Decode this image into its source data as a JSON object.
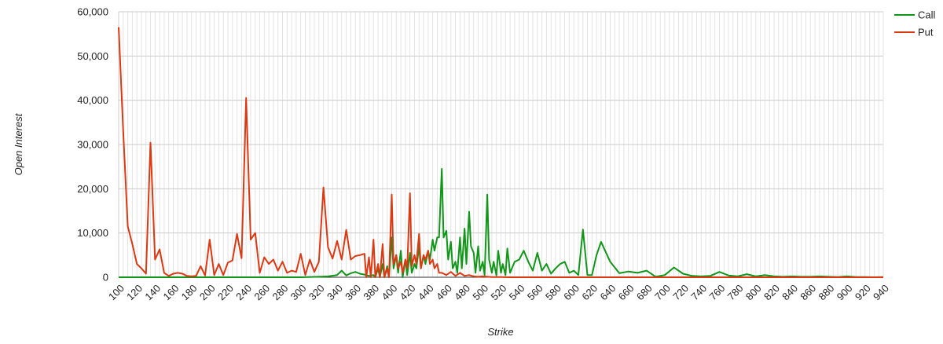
{
  "chart_data": {
    "type": "line",
    "xlabel": "Strike",
    "ylabel": "Open Interest",
    "xlim": [
      100,
      940
    ],
    "ylim": [
      0,
      60000
    ],
    "x_ticks": [
      100,
      120,
      140,
      160,
      180,
      200,
      220,
      240,
      260,
      280,
      300,
      320,
      340,
      360,
      380,
      400,
      420,
      440,
      460,
      480,
      500,
      520,
      540,
      560,
      580,
      600,
      620,
      640,
      660,
      680,
      700,
      720,
      740,
      760,
      780,
      800,
      820,
      840,
      860,
      880,
      900,
      920,
      940
    ],
    "y_ticks": [
      0,
      10000,
      20000,
      30000,
      40000,
      50000,
      60000
    ],
    "y_tick_labels": [
      "0",
      "10,000",
      "20,000",
      "30,000",
      "40,000",
      "50,000",
      "60,000"
    ],
    "grid": true,
    "legend_position": "top-right",
    "series": [
      {
        "name": "Call",
        "color": "#109618",
        "points": [
          [
            100,
            0
          ],
          [
            200,
            0
          ],
          [
            300,
            0
          ],
          [
            320,
            100
          ],
          [
            330,
            200
          ],
          [
            340,
            500
          ],
          [
            345,
            1500
          ],
          [
            350,
            400
          ],
          [
            355,
            900
          ],
          [
            360,
            1200
          ],
          [
            365,
            800
          ],
          [
            370,
            600
          ],
          [
            375,
            300
          ],
          [
            380,
            500
          ],
          [
            382,
            0
          ],
          [
            385,
            2000
          ],
          [
            387,
            0
          ],
          [
            390,
            3000
          ],
          [
            392,
            0
          ],
          [
            395,
            2500
          ],
          [
            397,
            0
          ],
          [
            400,
            9000
          ],
          [
            402,
            2000
          ],
          [
            405,
            5000
          ],
          [
            407,
            1000
          ],
          [
            410,
            6000
          ],
          [
            412,
            0
          ],
          [
            415,
            4000
          ],
          [
            417,
            500
          ],
          [
            420,
            5500
          ],
          [
            422,
            1000
          ],
          [
            425,
            3000
          ],
          [
            427,
            2000
          ],
          [
            430,
            7000
          ],
          [
            432,
            2000
          ],
          [
            435,
            5000
          ],
          [
            437,
            3000
          ],
          [
            440,
            6000
          ],
          [
            442,
            4000
          ],
          [
            445,
            8500
          ],
          [
            447,
            6000
          ],
          [
            450,
            9000
          ],
          [
            452,
            9000
          ],
          [
            455,
            24500
          ],
          [
            457,
            9000
          ],
          [
            460,
            10500
          ],
          [
            462,
            4000
          ],
          [
            465,
            8000
          ],
          [
            467,
            2000
          ],
          [
            470,
            3500
          ],
          [
            472,
            1000
          ],
          [
            475,
            9000
          ],
          [
            477,
            2000
          ],
          [
            480,
            11000
          ],
          [
            482,
            3000
          ],
          [
            485,
            14800
          ],
          [
            487,
            7000
          ],
          [
            490,
            5500
          ],
          [
            492,
            1000
          ],
          [
            495,
            7000
          ],
          [
            497,
            1500
          ],
          [
            500,
            3500
          ],
          [
            502,
            500
          ],
          [
            505,
            18700
          ],
          [
            507,
            4000
          ],
          [
            510,
            1000
          ],
          [
            512,
            3500
          ],
          [
            515,
            400
          ],
          [
            517,
            6000
          ],
          [
            520,
            1000
          ],
          [
            522,
            3000
          ],
          [
            525,
            500
          ],
          [
            527,
            6500
          ],
          [
            530,
            1000
          ],
          [
            535,
            3500
          ],
          [
            540,
            4000
          ],
          [
            545,
            6000
          ],
          [
            550,
            3500
          ],
          [
            555,
            1500
          ],
          [
            560,
            5500
          ],
          [
            565,
            1500
          ],
          [
            570,
            3000
          ],
          [
            575,
            800
          ],
          [
            580,
            2000
          ],
          [
            585,
            3000
          ],
          [
            590,
            3500
          ],
          [
            595,
            1000
          ],
          [
            600,
            1500
          ],
          [
            605,
            500
          ],
          [
            610,
            10800
          ],
          [
            615,
            500
          ],
          [
            620,
            500
          ],
          [
            625,
            5000
          ],
          [
            630,
            8000
          ],
          [
            640,
            3500
          ],
          [
            650,
            900
          ],
          [
            660,
            1300
          ],
          [
            670,
            1000
          ],
          [
            680,
            1500
          ],
          [
            690,
            100
          ],
          [
            700,
            500
          ],
          [
            710,
            2200
          ],
          [
            720,
            800
          ],
          [
            730,
            300
          ],
          [
            740,
            200
          ],
          [
            750,
            300
          ],
          [
            760,
            1200
          ],
          [
            770,
            400
          ],
          [
            780,
            200
          ],
          [
            790,
            700
          ],
          [
            800,
            200
          ],
          [
            810,
            500
          ],
          [
            820,
            200
          ],
          [
            830,
            100
          ],
          [
            840,
            200
          ],
          [
            850,
            100
          ],
          [
            860,
            100
          ],
          [
            870,
            200
          ],
          [
            880,
            100
          ],
          [
            890,
            50
          ],
          [
            900,
            200
          ],
          [
            910,
            50
          ],
          [
            920,
            50
          ],
          [
            930,
            0
          ],
          [
            940,
            50
          ]
        ]
      },
      {
        "name": "Put",
        "color": "#dc3912",
        "points": [
          [
            100,
            56500
          ],
          [
            105,
            33000
          ],
          [
            110,
            11500
          ],
          [
            115,
            7500
          ],
          [
            120,
            3000
          ],
          [
            125,
            2000
          ],
          [
            130,
            800
          ],
          [
            135,
            30400
          ],
          [
            140,
            4000
          ],
          [
            145,
            6300
          ],
          [
            150,
            1000
          ],
          [
            155,
            300
          ],
          [
            160,
            800
          ],
          [
            165,
            1000
          ],
          [
            170,
            800
          ],
          [
            175,
            300
          ],
          [
            180,
            200
          ],
          [
            185,
            300
          ],
          [
            190,
            2500
          ],
          [
            195,
            400
          ],
          [
            200,
            8500
          ],
          [
            205,
            500
          ],
          [
            210,
            3000
          ],
          [
            215,
            500
          ],
          [
            220,
            3300
          ],
          [
            225,
            3800
          ],
          [
            230,
            9800
          ],
          [
            235,
            4300
          ],
          [
            240,
            40500
          ],
          [
            245,
            8500
          ],
          [
            250,
            10000
          ],
          [
            255,
            1000
          ],
          [
            260,
            4500
          ],
          [
            265,
            3000
          ],
          [
            270,
            4000
          ],
          [
            275,
            1500
          ],
          [
            280,
            3500
          ],
          [
            285,
            1000
          ],
          [
            290,
            1500
          ],
          [
            295,
            1200
          ],
          [
            300,
            5300
          ],
          [
            305,
            500
          ],
          [
            310,
            4000
          ],
          [
            315,
            1200
          ],
          [
            320,
            3500
          ],
          [
            325,
            20300
          ],
          [
            330,
            6800
          ],
          [
            335,
            4200
          ],
          [
            340,
            8200
          ],
          [
            345,
            4000
          ],
          [
            350,
            10700
          ],
          [
            355,
            4000
          ],
          [
            360,
            4800
          ],
          [
            365,
            5000
          ],
          [
            370,
            5300
          ],
          [
            372,
            0
          ],
          [
            375,
            4500
          ],
          [
            377,
            0
          ],
          [
            380,
            8500
          ],
          [
            382,
            0
          ],
          [
            385,
            3000
          ],
          [
            387,
            0
          ],
          [
            390,
            7500
          ],
          [
            392,
            0
          ],
          [
            395,
            2000
          ],
          [
            397,
            0
          ],
          [
            400,
            18700
          ],
          [
            402,
            3000
          ],
          [
            405,
            5000
          ],
          [
            407,
            2000
          ],
          [
            410,
            3500
          ],
          [
            412,
            1000
          ],
          [
            415,
            4000
          ],
          [
            417,
            2000
          ],
          [
            420,
            19000
          ],
          [
            422,
            2500
          ],
          [
            425,
            5000
          ],
          [
            427,
            3000
          ],
          [
            430,
            9800
          ],
          [
            432,
            2000
          ],
          [
            435,
            5000
          ],
          [
            437,
            4000
          ],
          [
            440,
            6000
          ],
          [
            442,
            3000
          ],
          [
            445,
            4000
          ],
          [
            447,
            2000
          ],
          [
            450,
            3000
          ],
          [
            452,
            1000
          ],
          [
            455,
            1000
          ],
          [
            460,
            500
          ],
          [
            465,
            1200
          ],
          [
            470,
            300
          ],
          [
            475,
            1000
          ],
          [
            480,
            300
          ],
          [
            485,
            500
          ],
          [
            490,
            200
          ],
          [
            495,
            100
          ],
          [
            500,
            200
          ],
          [
            510,
            50
          ],
          [
            520,
            50
          ],
          [
            530,
            0
          ],
          [
            600,
            0
          ],
          [
            700,
            0
          ],
          [
            800,
            0
          ],
          [
            900,
            0
          ],
          [
            940,
            0
          ]
        ]
      }
    ]
  }
}
